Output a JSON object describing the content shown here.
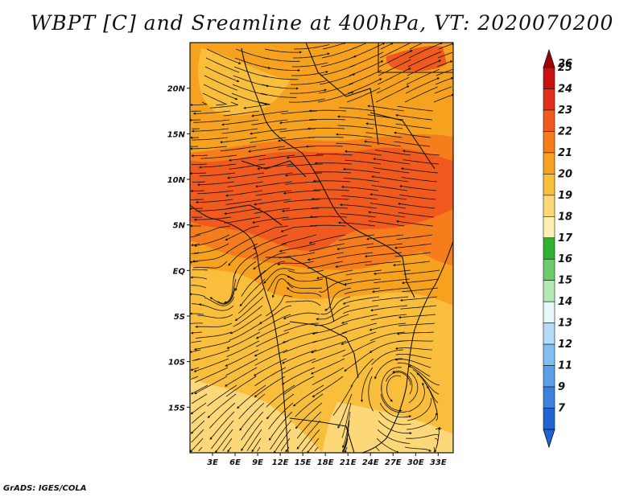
{
  "title": "WBPT [C] and Sreamline at 400hPa, VT: 2020070200",
  "credit": "GrADS: IGES/COLA",
  "map": {
    "lon_range": [
      0,
      35
    ],
    "lat_range": [
      -20,
      25
    ],
    "lat_ticks": [
      {
        "lat": 20,
        "label": "20N"
      },
      {
        "lat": 15,
        "label": "15N"
      },
      {
        "lat": 10,
        "label": "10N"
      },
      {
        "lat": 5,
        "label": "5N"
      },
      {
        "lat": 0,
        "label": "EQ"
      },
      {
        "lat": -5,
        "label": "5S"
      },
      {
        "lat": -10,
        "label": "10S"
      },
      {
        "lat": -15,
        "label": "15S"
      }
    ],
    "lon_ticks": [
      {
        "lon": 3,
        "label": "3E"
      },
      {
        "lon": 6,
        "label": "6E"
      },
      {
        "lon": 9,
        "label": "9E"
      },
      {
        "lon": 12,
        "label": "12E"
      },
      {
        "lon": 15,
        "label": "15E"
      },
      {
        "lon": 18,
        "label": "18E"
      },
      {
        "lon": 21,
        "label": "21E"
      },
      {
        "lon": 24,
        "label": "24E"
      },
      {
        "lon": 27,
        "label": "27E"
      },
      {
        "lon": 30,
        "label": "30E"
      },
      {
        "lon": 33,
        "label": "33E"
      }
    ]
  },
  "colorbar": {
    "levels": [
      {
        "label": "26",
        "color": "#a0000a"
      },
      {
        "label": "25",
        "color": "#c8120f"
      },
      {
        "label": "24",
        "color": "#e0301a"
      },
      {
        "label": "23",
        "color": "#f05a1e"
      },
      {
        "label": "22",
        "color": "#f57d1c"
      },
      {
        "label": "21",
        "color": "#f7a21e"
      },
      {
        "label": "20",
        "color": "#f9be3c"
      },
      {
        "label": "19",
        "color": "#fcd878"
      },
      {
        "label": "18",
        "color": "#fdf0b4"
      },
      {
        "label": "17",
        "color": "#2fb22f"
      },
      {
        "label": "16",
        "color": "#6ccd6c"
      },
      {
        "label": "15",
        "color": "#b4e8b4"
      },
      {
        "label": "14",
        "color": "#e6f7fa"
      },
      {
        "label": "13",
        "color": "#b4dcf8"
      },
      {
        "label": "12",
        "color": "#82bff0"
      },
      {
        "label": "11",
        "color": "#5aa0e6"
      },
      {
        "label": "9",
        "color": "#3a82dc"
      },
      {
        "label": "7",
        "color": "#1e64d2"
      }
    ],
    "bottom_arrow_color": "#1e64d2"
  },
  "field_colors": {
    "c19": "#fcd878",
    "c20": "#f9be3c",
    "c21": "#f7a21e",
    "c22": "#f57d1c",
    "c23": "#f05a1e"
  }
}
